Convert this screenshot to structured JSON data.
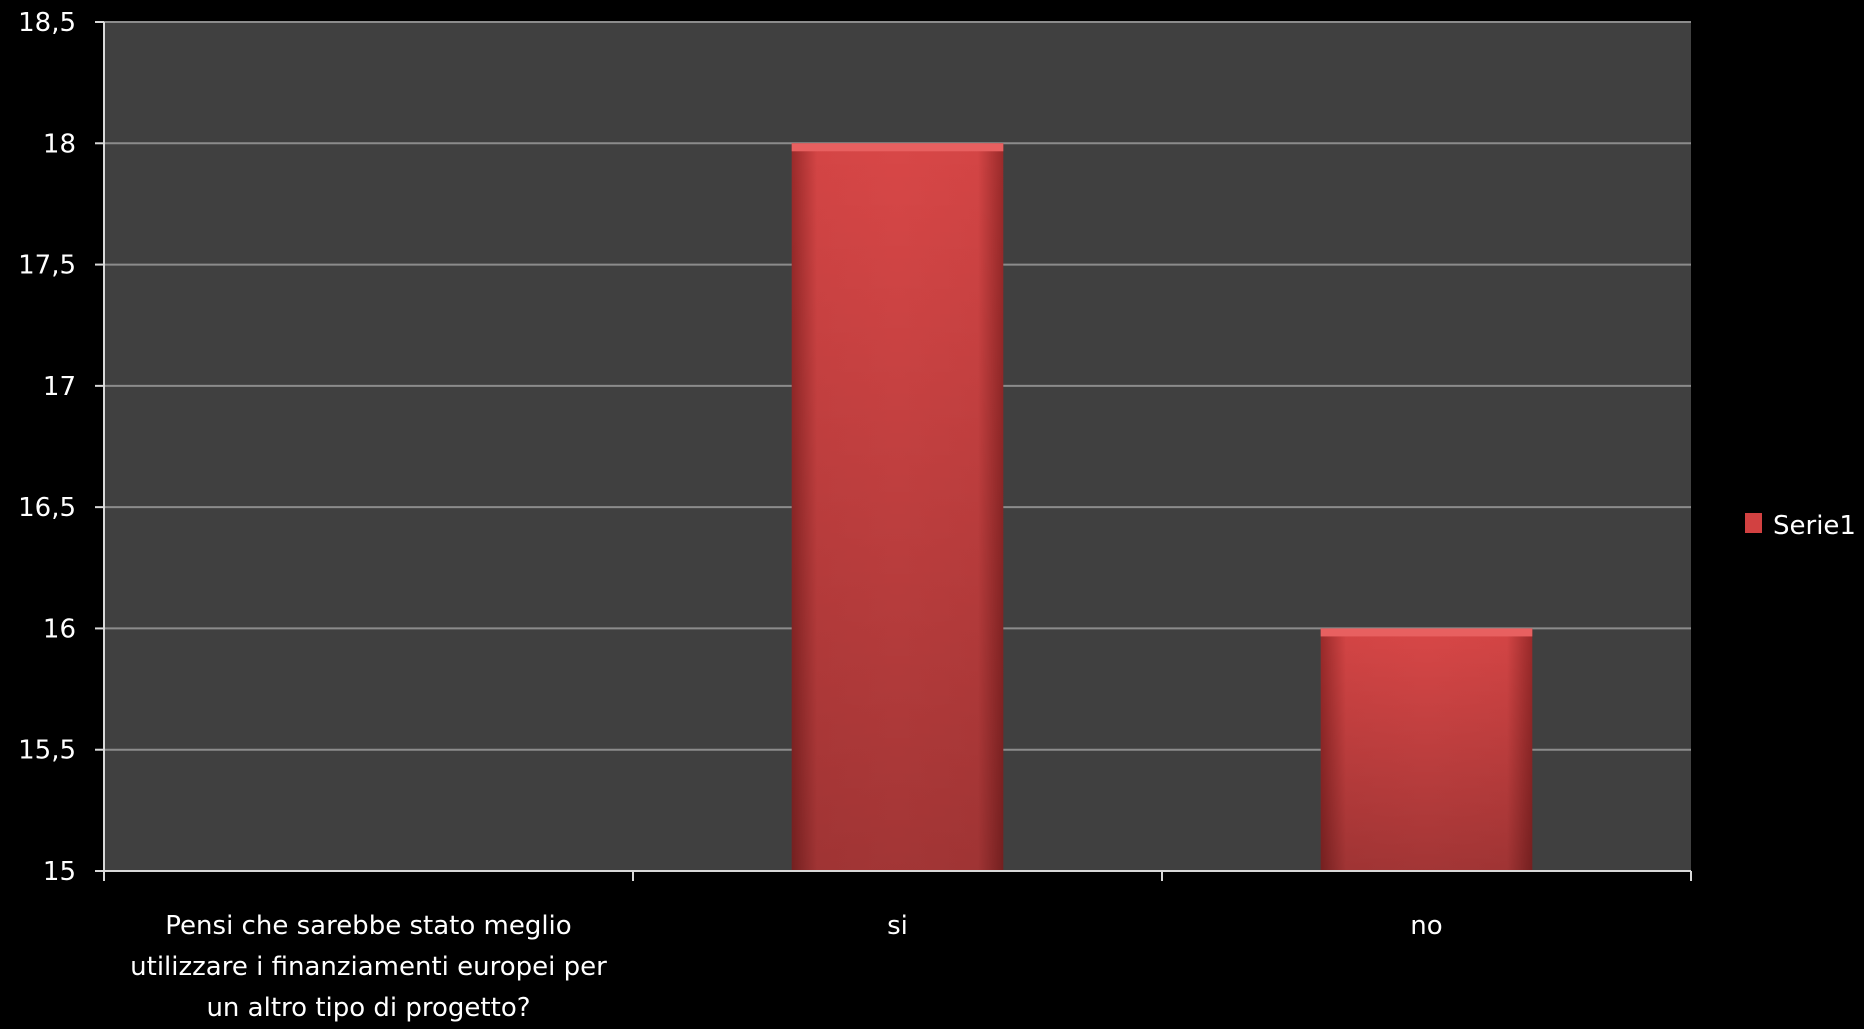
{
  "chart_data": {
    "type": "bar",
    "categories": [
      "Pensi che sarebbe stato meglio utilizzare i finanziamenti europei per un altro tipo di progetto?",
      "si",
      "no"
    ],
    "category_lines": [
      [
        "Pensi che sarebbe stato meglio",
        "utilizzare i finanziamenti europei per",
        "un altro tipo di progetto?"
      ],
      [
        "si"
      ],
      [
        "no"
      ]
    ],
    "series": [
      {
        "name": "Serie1",
        "values": [
          null,
          18,
          16
        ]
      }
    ],
    "ylim": [
      15,
      18.5
    ],
    "yticks": [
      15,
      15.5,
      16,
      16.5,
      17,
      17.5,
      18,
      18.5
    ],
    "ytick_labels": [
      "15",
      "15,5",
      "16",
      "16,5",
      "17",
      "17,5",
      "18",
      "18,5"
    ],
    "grid": true,
    "legend_position": "right",
    "colors": {
      "background": "#000000",
      "plot_area": "#404040",
      "grid": "#8c8c8c",
      "bar": "#d24141",
      "bar_dark": "#8e2424",
      "axis": "#d9d9d9"
    }
  }
}
